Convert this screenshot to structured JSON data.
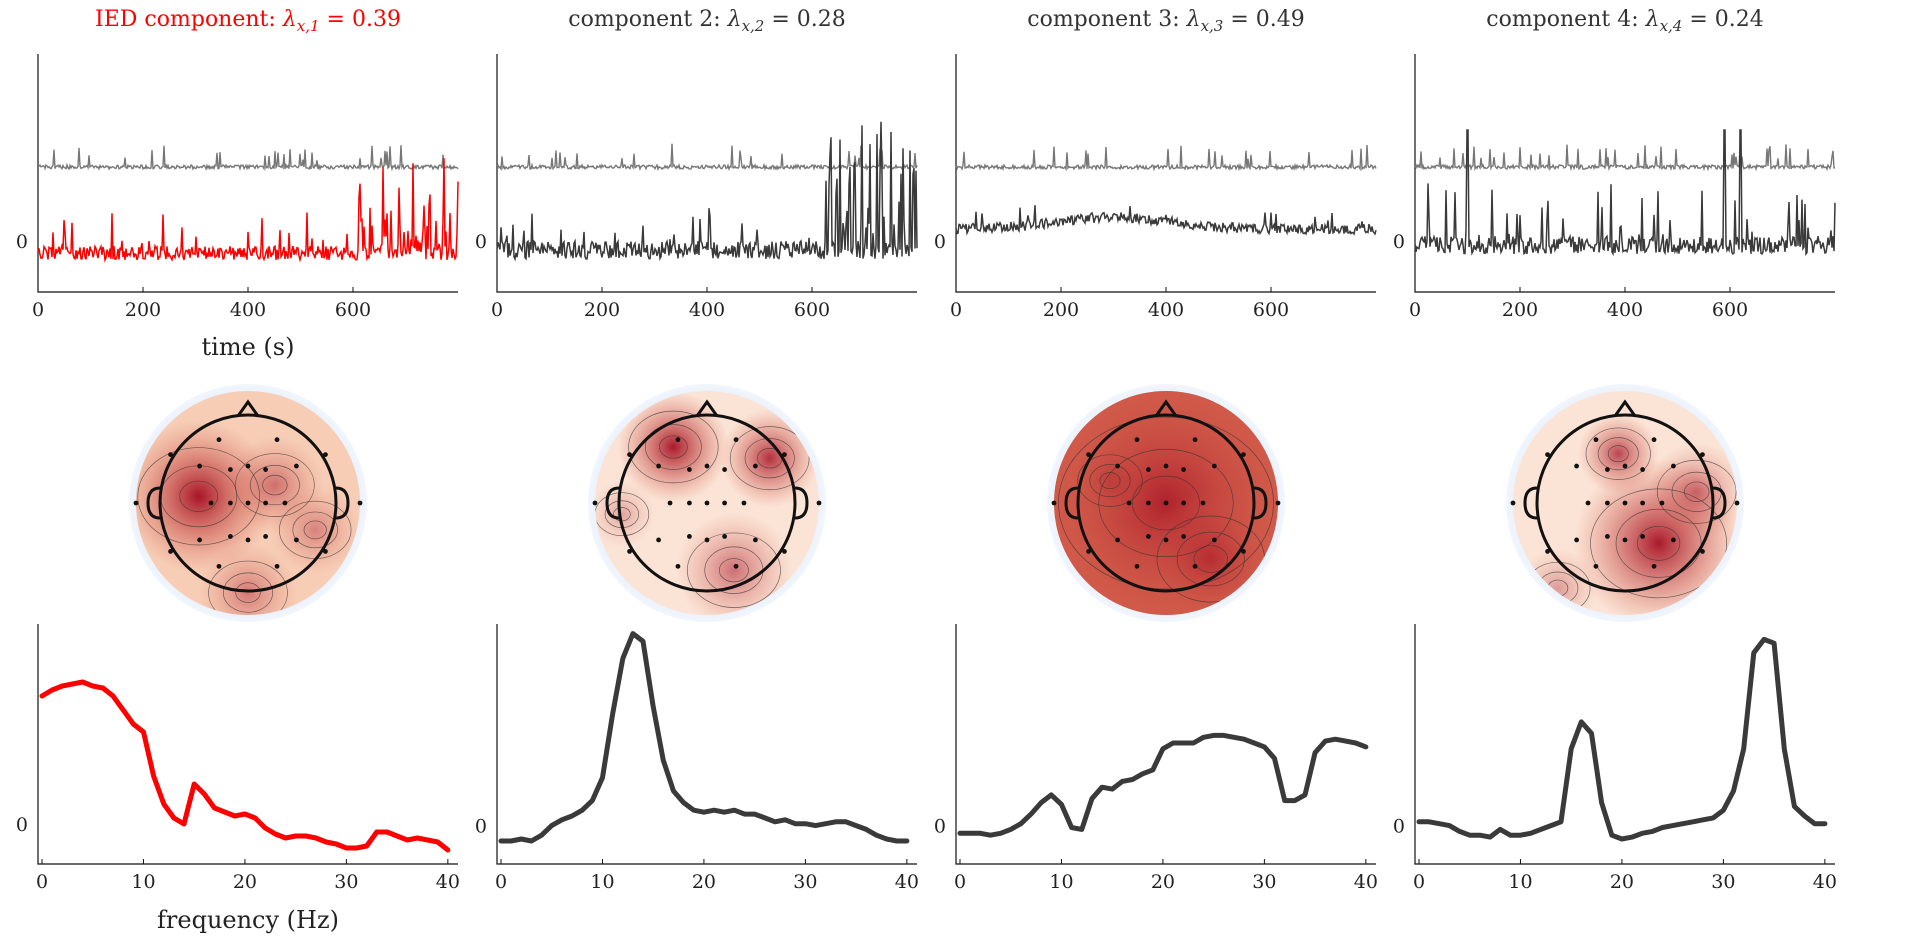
{
  "figure": {
    "time_xlabel": "time (s)",
    "freq_xlabel": "frequency (Hz)",
    "zero_label": "0"
  },
  "chart_data": [
    {
      "type": "line",
      "title": "IED component: λx,1 = 0.39",
      "title_parts": {
        "prefix": "IED component:",
        "symbol": "λ",
        "sub": "x,1",
        "eq": "= 0.39"
      },
      "title_color": "#ff0000",
      "color": "#ff0000",
      "time_ticks": [
        "0",
        "200",
        "400",
        "600"
      ],
      "xlim": [
        0,
        800
      ],
      "freq_ticks": [
        "0",
        "10",
        "20",
        "30",
        "40"
      ],
      "spectrum_x": [
        0,
        1,
        2,
        3,
        4,
        5,
        6,
        7,
        8,
        9,
        10,
        11,
        12,
        13,
        14,
        15,
        16,
        17,
        18,
        19,
        20,
        21,
        22,
        23,
        24,
        25,
        26,
        27,
        28,
        29,
        30,
        31,
        32,
        33,
        34,
        35,
        36,
        37,
        38,
        39,
        40
      ],
      "spectrum_y": [
        0.64,
        0.67,
        0.69,
        0.7,
        0.71,
        0.69,
        0.68,
        0.64,
        0.57,
        0.5,
        0.46,
        0.24,
        0.1,
        0.03,
        0.0,
        0.2,
        0.15,
        0.08,
        0.06,
        0.04,
        0.05,
        0.03,
        -0.02,
        -0.05,
        -0.07,
        -0.06,
        -0.06,
        -0.07,
        -0.09,
        -0.1,
        -0.12,
        -0.12,
        -0.11,
        -0.04,
        -0.04,
        -0.06,
        -0.08,
        -0.07,
        -0.08,
        -0.09,
        -0.13
      ],
      "spectrum_ylim": [
        -0.2,
        1.0
      ],
      "topo_spots": [
        {
          "cx": 0.28,
          "cy": 0.47,
          "r": 0.34,
          "o": 0.97
        },
        {
          "cx": 0.62,
          "cy": 0.42,
          "r": 0.22,
          "o": 0.5
        },
        {
          "cx": 0.5,
          "cy": 0.9,
          "r": 0.22,
          "o": 0.45
        },
        {
          "cx": 0.8,
          "cy": 0.62,
          "r": 0.2,
          "o": 0.4
        }
      ],
      "topo_base": "#f7cdb6"
    },
    {
      "type": "line",
      "title": "component 2: λx,2 = 0.28",
      "title_parts": {
        "prefix": "component 2:",
        "symbol": "λ",
        "sub": "x,2",
        "eq": "= 0.28"
      },
      "title_color": "#333333",
      "color": "#3a3a3a",
      "time_ticks": [
        "0",
        "200",
        "400",
        "600"
      ],
      "xlim": [
        0,
        800
      ],
      "freq_ticks": [
        "0",
        "10",
        "20",
        "30",
        "40"
      ],
      "spectrum_x": [
        0,
        1,
        2,
        3,
        4,
        5,
        6,
        7,
        8,
        9,
        10,
        11,
        12,
        13,
        14,
        15,
        16,
        17,
        18,
        19,
        20,
        21,
        22,
        23,
        24,
        25,
        26,
        27,
        28,
        29,
        30,
        31,
        32,
        33,
        34,
        35,
        36,
        37,
        38,
        39,
        40
      ],
      "spectrum_y": [
        -0.08,
        -0.08,
        -0.07,
        -0.08,
        -0.05,
        0.0,
        0.03,
        0.05,
        0.08,
        0.13,
        0.25,
        0.58,
        0.87,
        1.0,
        0.96,
        0.62,
        0.34,
        0.18,
        0.12,
        0.08,
        0.07,
        0.08,
        0.07,
        0.08,
        0.06,
        0.06,
        0.04,
        0.02,
        0.03,
        0.01,
        0.01,
        0.0,
        0.01,
        0.02,
        0.02,
        0.0,
        -0.02,
        -0.05,
        -0.07,
        -0.08,
        -0.08
      ],
      "spectrum_ylim": [
        -0.2,
        1.05
      ],
      "topo_spots": [
        {
          "cx": 0.35,
          "cy": 0.25,
          "r": 0.25,
          "o": 0.95
        },
        {
          "cx": 0.78,
          "cy": 0.3,
          "r": 0.22,
          "o": 0.85
        },
        {
          "cx": 0.62,
          "cy": 0.8,
          "r": 0.26,
          "o": 0.55
        },
        {
          "cx": 0.12,
          "cy": 0.55,
          "r": 0.15,
          "o": 0.3
        }
      ],
      "topo_base": "#fbe4d6"
    },
    {
      "type": "line",
      "title": "component 3: λx,3 = 0.49",
      "title_parts": {
        "prefix": "component 3:",
        "symbol": "λ",
        "sub": "x,3",
        "eq": "= 0.49"
      },
      "title_color": "#333333",
      "color": "#3a3a3a",
      "time_ticks": [
        "0",
        "200",
        "400",
        "600"
      ],
      "xlim": [
        0,
        800
      ],
      "freq_ticks": [
        "0",
        "10",
        "20",
        "30",
        "40"
      ],
      "spectrum_x": [
        0,
        1,
        2,
        3,
        4,
        5,
        6,
        7,
        8,
        9,
        10,
        11,
        12,
        13,
        14,
        15,
        16,
        17,
        18,
        19,
        20,
        21,
        22,
        23,
        24,
        25,
        26,
        27,
        28,
        29,
        30,
        31,
        32,
        33,
        34,
        35,
        36,
        37,
        38,
        39,
        40
      ],
      "spectrum_y": [
        -0.04,
        -0.04,
        -0.04,
        -0.05,
        -0.04,
        -0.02,
        0.01,
        0.06,
        0.12,
        0.16,
        0.11,
        -0.01,
        -0.02,
        0.14,
        0.2,
        0.19,
        0.23,
        0.24,
        0.27,
        0.29,
        0.4,
        0.43,
        0.43,
        0.43,
        0.46,
        0.47,
        0.47,
        0.46,
        0.45,
        0.43,
        0.41,
        0.35,
        0.13,
        0.13,
        0.16,
        0.38,
        0.44,
        0.45,
        0.44,
        0.43,
        0.41
      ],
      "spectrum_ylim": [
        -0.2,
        1.05
      ],
      "topo_spots": [
        {
          "cx": 0.5,
          "cy": 0.5,
          "r": 0.6,
          "o": 0.75
        },
        {
          "cx": 0.7,
          "cy": 0.75,
          "r": 0.3,
          "o": 0.55
        },
        {
          "cx": 0.25,
          "cy": 0.4,
          "r": 0.18,
          "o": 0.25
        }
      ],
      "topo_base": "#d05a4a"
    },
    {
      "type": "line",
      "title": "component 4: λx,4 = 0.24",
      "title_parts": {
        "prefix": "component 4:",
        "symbol": "λ",
        "sub": "x,4",
        "eq": "= 0.24"
      },
      "title_color": "#333333",
      "color": "#3a3a3a",
      "time_ticks": [
        "0",
        "200",
        "400",
        "600"
      ],
      "xlim": [
        0,
        800
      ],
      "freq_ticks": [
        "0",
        "10",
        "20",
        "30",
        "40"
      ],
      "spectrum_x": [
        0,
        1,
        2,
        3,
        4,
        5,
        6,
        7,
        8,
        9,
        10,
        11,
        12,
        13,
        14,
        15,
        16,
        17,
        18,
        19,
        20,
        21,
        22,
        23,
        24,
        25,
        26,
        27,
        28,
        29,
        30,
        31,
        32,
        33,
        34,
        35,
        36,
        37,
        38,
        39,
        40
      ],
      "spectrum_y": [
        0.02,
        0.02,
        0.01,
        0.0,
        -0.03,
        -0.05,
        -0.05,
        -0.06,
        -0.02,
        -0.05,
        -0.05,
        -0.04,
        -0.02,
        0.0,
        0.02,
        0.4,
        0.54,
        0.48,
        0.12,
        -0.05,
        -0.07,
        -0.06,
        -0.04,
        -0.03,
        -0.01,
        0.0,
        0.01,
        0.02,
        0.03,
        0.04,
        0.08,
        0.18,
        0.4,
        0.9,
        0.97,
        0.95,
        0.4,
        0.1,
        0.05,
        0.01,
        0.01
      ],
      "spectrum_ylim": [
        -0.2,
        1.05
      ],
      "topo_spots": [
        {
          "cx": 0.47,
          "cy": 0.28,
          "r": 0.18,
          "o": 0.75
        },
        {
          "cx": 0.65,
          "cy": 0.68,
          "r": 0.38,
          "o": 0.95
        },
        {
          "cx": 0.82,
          "cy": 0.45,
          "r": 0.22,
          "o": 0.55
        },
        {
          "cx": 0.2,
          "cy": 0.88,
          "r": 0.18,
          "o": 0.35
        }
      ],
      "topo_base": "#fbe4d6"
    }
  ]
}
